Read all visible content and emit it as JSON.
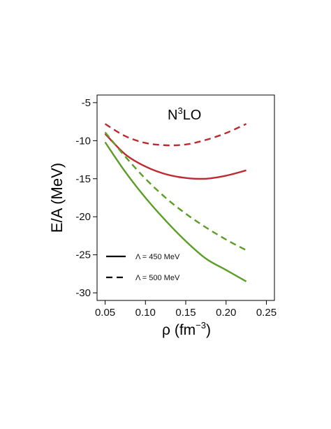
{
  "chart_data": {
    "type": "line",
    "title": "N",
    "title_sup": "3",
    "title_rest": "LO",
    "ylabel": "E/A  (MeV)",
    "xlabel": {
      "symbol": "ρ",
      "unit": "fm",
      "exponent": "−3"
    },
    "xlim": [
      0.04,
      0.26
    ],
    "ylim": [
      -31,
      -4
    ],
    "xticks": [
      0.05,
      0.1,
      0.15,
      0.2,
      0.25
    ],
    "xtick_labels": [
      "0.05",
      "0.10",
      "0.15",
      "0.20",
      "0.25"
    ],
    "yticks": [
      -30,
      -25,
      -20,
      -15,
      -10,
      -5
    ],
    "ytick_labels": [
      "-30",
      "-25",
      "-20",
      "-15",
      "-10",
      "-5"
    ],
    "grid": false,
    "legend_position": "bottom-left",
    "legend": [
      {
        "label": "Λ = 450  MeV",
        "style": "solid"
      },
      {
        "label": "Λ = 500  MeV",
        "style": "dashed"
      }
    ],
    "series": [
      {
        "color": "#c0282d",
        "style": "solid",
        "x": [
          0.05,
          0.075,
          0.1,
          0.125,
          0.15,
          0.175,
          0.2,
          0.225
        ],
        "y": [
          -9.1,
          -11.8,
          -13.4,
          -14.4,
          -14.9,
          -15.0,
          -14.6,
          -13.9
        ]
      },
      {
        "color": "#c0282d",
        "style": "dashed",
        "x": [
          0.05,
          0.075,
          0.1,
          0.125,
          0.15,
          0.175,
          0.2,
          0.225
        ],
        "y": [
          -7.8,
          -9.4,
          -10.3,
          -10.6,
          -10.5,
          -9.9,
          -9.0,
          -7.8
        ]
      },
      {
        "color": "#5a9e23",
        "style": "solid",
        "x": [
          0.05,
          0.075,
          0.1,
          0.125,
          0.15,
          0.175,
          0.2,
          0.225
        ],
        "y": [
          -10.2,
          -14.1,
          -17.5,
          -20.5,
          -23.2,
          -25.5,
          -27.0,
          -28.5
        ]
      },
      {
        "color": "#5a9e23",
        "style": "dashed",
        "x": [
          0.05,
          0.075,
          0.1,
          0.125,
          0.15,
          0.175,
          0.2,
          0.225
        ],
        "y": [
          -8.9,
          -12.1,
          -15.0,
          -17.5,
          -19.6,
          -21.4,
          -23.0,
          -24.4
        ]
      }
    ]
  }
}
